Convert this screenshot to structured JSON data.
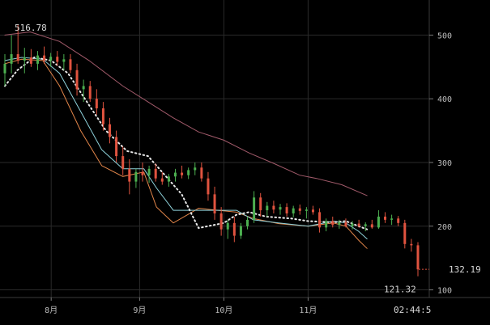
{
  "colors": {
    "background": "#000000",
    "grid": "#2a2a2a",
    "up": "#4caf50",
    "down": "#e0533f",
    "ma_short": "#e3864a",
    "ma_mid": "#8fd3dc",
    "ma_dotted": "#e8e8e8",
    "ma_long": "#a15a6a",
    "axis_text": "#bdbdbd"
  },
  "chart_data": {
    "type": "candlestick",
    "title": "",
    "xlabel": "",
    "ylabel": "",
    "ylim": [
      88,
      550
    ],
    "yticks": [
      100,
      200,
      300,
      400,
      500
    ],
    "xticks": [
      {
        "label": "8月",
        "t": 0.11
      },
      {
        "label": "9月",
        "t": 0.32
      },
      {
        "label": "10月",
        "t": 0.52
      },
      {
        "label": "11月",
        "t": 0.72
      }
    ],
    "current_time": "02:44:5",
    "annotations": {
      "high_label": "516.78",
      "low_label": "121.32",
      "last_price_label": "132.19",
      "high": 516.78,
      "low": 121.32,
      "last": 132.19
    },
    "candles": [
      {
        "o": 440,
        "h": 470,
        "l": 420,
        "c": 455
      },
      {
        "o": 455,
        "h": 500,
        "l": 440,
        "c": 470
      },
      {
        "o": 470,
        "h": 517,
        "l": 455,
        "c": 460
      },
      {
        "o": 460,
        "h": 480,
        "l": 440,
        "c": 465
      },
      {
        "o": 465,
        "h": 478,
        "l": 450,
        "c": 455
      },
      {
        "o": 455,
        "h": 475,
        "l": 445,
        "c": 468
      },
      {
        "o": 468,
        "h": 482,
        "l": 455,
        "c": 460
      },
      {
        "o": 460,
        "h": 472,
        "l": 450,
        "c": 466
      },
      {
        "o": 466,
        "h": 475,
        "l": 452,
        "c": 458
      },
      {
        "o": 458,
        "h": 470,
        "l": 445,
        "c": 462
      },
      {
        "o": 462,
        "h": 470,
        "l": 440,
        "c": 445
      },
      {
        "o": 445,
        "h": 455,
        "l": 405,
        "c": 415
      },
      {
        "o": 415,
        "h": 430,
        "l": 395,
        "c": 420
      },
      {
        "o": 420,
        "h": 428,
        "l": 395,
        "c": 400
      },
      {
        "o": 400,
        "h": 415,
        "l": 375,
        "c": 385
      },
      {
        "o": 385,
        "h": 395,
        "l": 350,
        "c": 360
      },
      {
        "o": 360,
        "h": 370,
        "l": 330,
        "c": 340
      },
      {
        "o": 340,
        "h": 350,
        "l": 300,
        "c": 310
      },
      {
        "o": 310,
        "h": 325,
        "l": 280,
        "c": 290
      },
      {
        "o": 290,
        "h": 305,
        "l": 250,
        "c": 270
      },
      {
        "o": 270,
        "h": 290,
        "l": 260,
        "c": 285
      },
      {
        "o": 285,
        "h": 300,
        "l": 270,
        "c": 280
      },
      {
        "o": 280,
        "h": 295,
        "l": 268,
        "c": 290
      },
      {
        "o": 290,
        "h": 298,
        "l": 270,
        "c": 275
      },
      {
        "o": 275,
        "h": 285,
        "l": 265,
        "c": 270
      },
      {
        "o": 270,
        "h": 282,
        "l": 262,
        "c": 278
      },
      {
        "o": 278,
        "h": 290,
        "l": 270,
        "c": 284
      },
      {
        "o": 284,
        "h": 295,
        "l": 275,
        "c": 280
      },
      {
        "o": 280,
        "h": 292,
        "l": 274,
        "c": 288
      },
      {
        "o": 288,
        "h": 300,
        "l": 280,
        "c": 292
      },
      {
        "o": 292,
        "h": 300,
        "l": 270,
        "c": 275
      },
      {
        "o": 275,
        "h": 285,
        "l": 240,
        "c": 250
      },
      {
        "o": 250,
        "h": 262,
        "l": 210,
        "c": 220
      },
      {
        "o": 220,
        "h": 230,
        "l": 185,
        "c": 195
      },
      {
        "o": 195,
        "h": 210,
        "l": 180,
        "c": 205
      },
      {
        "o": 205,
        "h": 215,
        "l": 175,
        "c": 185
      },
      {
        "o": 185,
        "h": 205,
        "l": 180,
        "c": 200
      },
      {
        "o": 200,
        "h": 215,
        "l": 195,
        "c": 210
      },
      {
        "o": 210,
        "h": 255,
        "l": 205,
        "c": 245
      },
      {
        "o": 245,
        "h": 252,
        "l": 215,
        "c": 225
      },
      {
        "o": 225,
        "h": 238,
        "l": 215,
        "c": 232
      },
      {
        "o": 232,
        "h": 240,
        "l": 220,
        "c": 226
      },
      {
        "o": 226,
        "h": 235,
        "l": 218,
        "c": 230
      },
      {
        "o": 230,
        "h": 236,
        "l": 215,
        "c": 220
      },
      {
        "o": 220,
        "h": 232,
        "l": 214,
        "c": 228
      },
      {
        "o": 228,
        "h": 234,
        "l": 218,
        "c": 224
      },
      {
        "o": 224,
        "h": 230,
        "l": 212,
        "c": 226
      },
      {
        "o": 226,
        "h": 232,
        "l": 218,
        "c": 222
      },
      {
        "o": 222,
        "h": 228,
        "l": 190,
        "c": 198
      },
      {
        "o": 198,
        "h": 212,
        "l": 192,
        "c": 208
      },
      {
        "o": 208,
        "h": 215,
        "l": 198,
        "c": 202
      },
      {
        "o": 202,
        "h": 210,
        "l": 196,
        "c": 206
      },
      {
        "o": 206,
        "h": 212,
        "l": 198,
        "c": 200
      },
      {
        "o": 200,
        "h": 208,
        "l": 195,
        "c": 204
      },
      {
        "o": 204,
        "h": 210,
        "l": 198,
        "c": 200
      },
      {
        "o": 200,
        "h": 206,
        "l": 192,
        "c": 203
      },
      {
        "o": 203,
        "h": 210,
        "l": 196,
        "c": 198
      },
      {
        "o": 198,
        "h": 225,
        "l": 196,
        "c": 215
      },
      {
        "o": 215,
        "h": 222,
        "l": 205,
        "c": 210
      },
      {
        "o": 210,
        "h": 218,
        "l": 202,
        "c": 212
      },
      {
        "o": 212,
        "h": 216,
        "l": 200,
        "c": 205
      },
      {
        "o": 205,
        "h": 210,
        "l": 165,
        "c": 172
      },
      {
        "o": 172,
        "h": 180,
        "l": 160,
        "c": 170
      },
      {
        "o": 170,
        "h": 175,
        "l": 121.32,
        "c": 132.19
      }
    ],
    "series": [
      {
        "points": [
          [
            0,
            455
          ],
          [
            0.04,
            462
          ],
          [
            0.09,
            460
          ],
          [
            0.13,
            420
          ],
          [
            0.18,
            350
          ],
          [
            0.23,
            295
          ],
          [
            0.28,
            278
          ],
          [
            0.33,
            285
          ],
          [
            0.36,
            230
          ],
          [
            0.4,
            205
          ],
          [
            0.46,
            228
          ],
          [
            0.55,
            222
          ],
          [
            0.59,
            212
          ],
          [
            0.65,
            204
          ],
          [
            0.72,
            200
          ],
          [
            0.78,
            205
          ],
          [
            0.81,
            200
          ],
          [
            0.84,
            178
          ],
          [
            0.86,
            165
          ]
        ]
      },
      {
        "points": [
          [
            0,
            460
          ],
          [
            0.04,
            465
          ],
          [
            0.09,
            462
          ],
          [
            0.13,
            440
          ],
          [
            0.18,
            380
          ],
          [
            0.23,
            320
          ],
          [
            0.28,
            290
          ],
          [
            0.33,
            290
          ],
          [
            0.36,
            260
          ],
          [
            0.4,
            225
          ],
          [
            0.46,
            225
          ],
          [
            0.55,
            225
          ],
          [
            0.59,
            210
          ],
          [
            0.65,
            205
          ],
          [
            0.72,
            200
          ],
          [
            0.78,
            208
          ],
          [
            0.81,
            205
          ],
          [
            0.84,
            192
          ],
          [
            0.86,
            180
          ]
        ]
      },
      {
        "points": [
          [
            0,
            420
          ],
          [
            0.03,
            445
          ],
          [
            0.07,
            465
          ],
          [
            0.11,
            460
          ],
          [
            0.15,
            440
          ],
          [
            0.19,
            400
          ],
          [
            0.24,
            350
          ],
          [
            0.29,
            318
          ],
          [
            0.34,
            310
          ],
          [
            0.38,
            280
          ],
          [
            0.42,
            250
          ],
          [
            0.46,
            197
          ],
          [
            0.52,
            205
          ],
          [
            0.55,
            218
          ],
          [
            0.58,
            222
          ],
          [
            0.62,
            215
          ],
          [
            0.68,
            212
          ],
          [
            0.72,
            208
          ],
          [
            0.78,
            206
          ],
          [
            0.81,
            208
          ],
          [
            0.84,
            200
          ],
          [
            0.86,
            195
          ]
        ]
      },
      {
        "points": [
          [
            0,
            500
          ],
          [
            0.06,
            505
          ],
          [
            0.13,
            490
          ],
          [
            0.2,
            460
          ],
          [
            0.28,
            420
          ],
          [
            0.34,
            395
          ],
          [
            0.4,
            370
          ],
          [
            0.46,
            348
          ],
          [
            0.52,
            335
          ],
          [
            0.58,
            315
          ],
          [
            0.64,
            298
          ],
          [
            0.7,
            280
          ],
          [
            0.74,
            275
          ],
          [
            0.8,
            265
          ],
          [
            0.86,
            248
          ]
        ]
      }
    ]
  }
}
